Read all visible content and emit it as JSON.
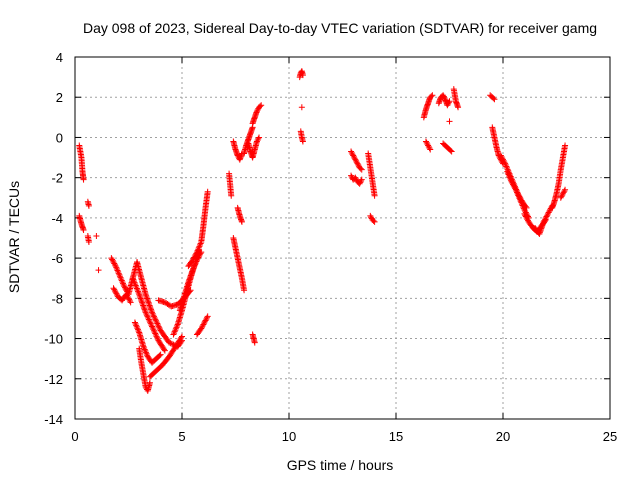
{
  "chart_data": {
    "type": "scatter",
    "title": "Day 098 of 2023, Sidereal Day-to-day VTEC variation (SDTVAR) for receiver gamg",
    "xlabel": "GPS time / hours",
    "ylabel": "SDTVAR / TECUs",
    "xlim": [
      0,
      25
    ],
    "ylim": [
      -14,
      4
    ],
    "xticks": [
      0,
      5,
      10,
      15,
      20,
      25
    ],
    "yticks": [
      4,
      2,
      0,
      -2,
      -4,
      -6,
      -8,
      -10,
      -12,
      -14
    ],
    "grid": true,
    "marker": "+",
    "color": "#ff0000",
    "segments": [
      {
        "x": [
          0.2,
          0.3,
          0.35,
          0.4
        ],
        "y": [
          -0.4,
          -1.0,
          -1.7,
          -2.1
        ]
      },
      {
        "x": [
          0.2,
          0.3,
          0.4
        ],
        "y": [
          -3.9,
          -4.3,
          -4.6
        ]
      },
      {
        "x": [
          0.6,
          0.65
        ],
        "y": [
          -3.2,
          -3.4
        ]
      },
      {
        "x": [
          0.6,
          0.65
        ],
        "y": [
          -4.9,
          -5.2
        ]
      },
      {
        "x": [
          1.0
        ],
        "y": [
          -4.9
        ]
      },
      {
        "x": [
          1.1
        ],
        "y": [
          -6.6
        ]
      },
      {
        "x": [
          1.7,
          1.9,
          2.1,
          2.3,
          2.5,
          2.7,
          2.9
        ],
        "y": [
          -6.0,
          -6.4,
          -6.9,
          -7.4,
          -7.8,
          -7.0,
          -6.2
        ]
      },
      {
        "x": [
          1.8,
          2.0,
          2.2,
          2.4,
          2.6
        ],
        "y": [
          -7.5,
          -7.9,
          -8.1,
          -7.8,
          -8.2
        ]
      },
      {
        "x": [
          2.7,
          3.0,
          3.3,
          3.6,
          3.9,
          4.2
        ],
        "y": [
          -7.0,
          -7.8,
          -8.7,
          -9.4,
          -10.1,
          -10.6
        ]
      },
      {
        "x": [
          2.8,
          3.0,
          3.2,
          3.4,
          3.6,
          3.8,
          4.0
        ],
        "y": [
          -9.2,
          -9.7,
          -10.4,
          -10.9,
          -11.2,
          -11.0,
          -10.8
        ]
      },
      {
        "x": [
          2.9,
          3.1,
          3.3,
          3.6,
          4.0,
          4.4,
          4.8,
          5.0
        ],
        "y": [
          -6.2,
          -7.0,
          -7.8,
          -8.7,
          -9.6,
          -10.2,
          -10.4,
          -10.1
        ]
      },
      {
        "x": [
          3.0,
          3.1,
          3.2,
          3.3,
          3.4,
          3.5
        ],
        "y": [
          -10.5,
          -11.2,
          -11.8,
          -12.4,
          -12.6,
          -12.2
        ]
      },
      {
        "x": [
          3.5,
          3.8,
          4.1,
          4.4,
          4.7,
          5.0
        ],
        "y": [
          -11.9,
          -11.6,
          -11.3,
          -10.9,
          -10.4,
          -9.9
        ]
      },
      {
        "x": [
          3.9,
          4.2,
          4.5,
          4.8,
          5.1,
          5.4
        ],
        "y": [
          -8.1,
          -8.2,
          -8.4,
          -8.3,
          -8.0,
          -7.6
        ]
      },
      {
        "x": [
          4.6,
          4.8,
          5.0,
          5.2,
          5.4,
          5.6,
          5.8
        ],
        "y": [
          -9.8,
          -9.3,
          -8.6,
          -7.8,
          -7.0,
          -6.3,
          -5.6
        ]
      },
      {
        "x": [
          4.9,
          5.1,
          5.3,
          5.5,
          5.7,
          5.9
        ],
        "y": [
          -8.6,
          -7.9,
          -7.2,
          -6.6,
          -6.1,
          -5.7
        ]
      },
      {
        "x": [
          5.3,
          5.5,
          5.7,
          5.9,
          6.0,
          6.1,
          6.2
        ],
        "y": [
          -6.4,
          -6.1,
          -5.7,
          -5.2,
          -4.4,
          -3.5,
          -2.7
        ]
      },
      {
        "x": [
          5.7,
          5.9,
          6.1,
          6.2
        ],
        "y": [
          -9.8,
          -9.5,
          -9.1,
          -8.9
        ]
      },
      {
        "x": [
          7.2,
          7.3
        ],
        "y": [
          -1.8,
          -2.9
        ]
      },
      {
        "x": [
          7.4,
          7.5,
          7.6,
          7.7,
          7.8
        ],
        "y": [
          -0.2,
          -0.6,
          -0.9,
          -1.1,
          -0.8
        ]
      },
      {
        "x": [
          7.6,
          7.7,
          7.8
        ],
        "y": [
          -3.5,
          -3.9,
          -4.2
        ]
      },
      {
        "x": [
          7.4,
          7.5,
          7.6,
          7.7,
          7.8,
          7.9
        ],
        "y": [
          -5.0,
          -5.5,
          -6.0,
          -6.5,
          -7.0,
          -7.6
        ]
      },
      {
        "x": [
          7.9,
          8.0,
          8.1,
          8.2,
          8.3
        ],
        "y": [
          -0.8,
          -0.4,
          -0.1,
          0.2,
          0.5
        ]
      },
      {
        "x": [
          8.1,
          8.2,
          8.3,
          8.4,
          8.5,
          8.6
        ],
        "y": [
          -0.3,
          -0.7,
          -1.0,
          -0.6,
          -0.2,
          0.0
        ]
      },
      {
        "x": [
          8.3,
          8.4,
          8.5,
          8.6,
          8.7
        ],
        "y": [
          0.7,
          1.0,
          1.3,
          1.5,
          1.6
        ]
      },
      {
        "x": [
          8.3,
          8.4
        ],
        "y": [
          -9.8,
          -10.2
        ]
      },
      {
        "x": [
          10.5,
          10.55,
          10.6,
          10.65
        ],
        "y": [
          3.0,
          3.2,
          3.3,
          3.1
        ]
      },
      {
        "x": [
          10.6
        ],
        "y": [
          1.5
        ]
      },
      {
        "x": [
          10.55,
          10.6,
          10.65
        ],
        "y": [
          0.3,
          0.0,
          -0.2
        ]
      },
      {
        "x": [
          12.9,
          13.0,
          13.1,
          13.2,
          13.3,
          13.4
        ],
        "y": [
          -0.7,
          -0.9,
          -1.1,
          -1.3,
          -1.5,
          -1.6
        ]
      },
      {
        "x": [
          12.9,
          13.0,
          13.1,
          13.2,
          13.3,
          13.4
        ],
        "y": [
          -1.9,
          -2.1,
          -2.0,
          -2.2,
          -2.3,
          -2.1
        ]
      },
      {
        "x": [
          13.7,
          13.8,
          13.9,
          14.0
        ],
        "y": [
          -0.8,
          -1.5,
          -2.2,
          -2.9
        ]
      },
      {
        "x": [
          13.8,
          13.9,
          14.0
        ],
        "y": [
          -3.9,
          -4.1,
          -4.2
        ]
      },
      {
        "x": [
          16.3,
          16.4,
          16.5,
          16.6,
          16.7
        ],
        "y": [
          1.0,
          1.4,
          1.7,
          2.0,
          2.1
        ]
      },
      {
        "x": [
          16.4,
          16.5,
          16.6
        ],
        "y": [
          -0.2,
          -0.4,
          -0.6
        ]
      },
      {
        "x": [
          17.0,
          17.1,
          17.2,
          17.3,
          17.4,
          17.5
        ],
        "y": [
          1.7,
          2.0,
          2.1,
          1.9,
          1.6,
          1.8
        ]
      },
      {
        "x": [
          17.2,
          17.4,
          17.6
        ],
        "y": [
          -0.3,
          -0.5,
          -0.7
        ]
      },
      {
        "x": [
          17.5
        ],
        "y": [
          0.8
        ]
      },
      {
        "x": [
          17.7,
          17.8,
          17.9
        ],
        "y": [
          2.4,
          1.8,
          1.5
        ]
      },
      {
        "x": [
          19.4,
          19.5,
          19.6
        ],
        "y": [
          2.1,
          2.0,
          1.9
        ]
      },
      {
        "x": [
          19.5,
          19.6,
          19.7,
          19.8,
          19.9,
          20.0
        ],
        "y": [
          0.5,
          0.0,
          -0.5,
          -0.9,
          -1.1,
          -1.3
        ]
      },
      {
        "x": [
          19.9,
          20.1,
          20.3,
          20.5,
          20.7,
          20.9,
          21.1
        ],
        "y": [
          -0.9,
          -1.3,
          -1.8,
          -2.3,
          -2.8,
          -3.2,
          -3.5
        ]
      },
      {
        "x": [
          20.2,
          20.4,
          20.6,
          20.8,
          21.0,
          21.2
        ],
        "y": [
          -1.7,
          -2.2,
          -2.6,
          -3.1,
          -3.6,
          -4.0
        ]
      },
      {
        "x": [
          21.0,
          21.2,
          21.4,
          21.6,
          21.8,
          22.0
        ],
        "y": [
          -3.8,
          -4.2,
          -4.5,
          -4.7,
          -4.4,
          -4.1
        ]
      },
      {
        "x": [
          21.5,
          21.7,
          21.9,
          22.1,
          22.3
        ],
        "y": [
          -4.5,
          -4.8,
          -4.2,
          -3.8,
          -3.4
        ]
      },
      {
        "x": [
          22.3,
          22.4,
          22.5,
          22.6,
          22.7,
          22.8,
          22.9
        ],
        "y": [
          -3.5,
          -3.2,
          -2.8,
          -2.3,
          -1.6,
          -1.0,
          -0.4
        ]
      },
      {
        "x": [
          22.7,
          22.8,
          22.9
        ],
        "y": [
          -3.0,
          -2.8,
          -2.6
        ]
      }
    ]
  }
}
